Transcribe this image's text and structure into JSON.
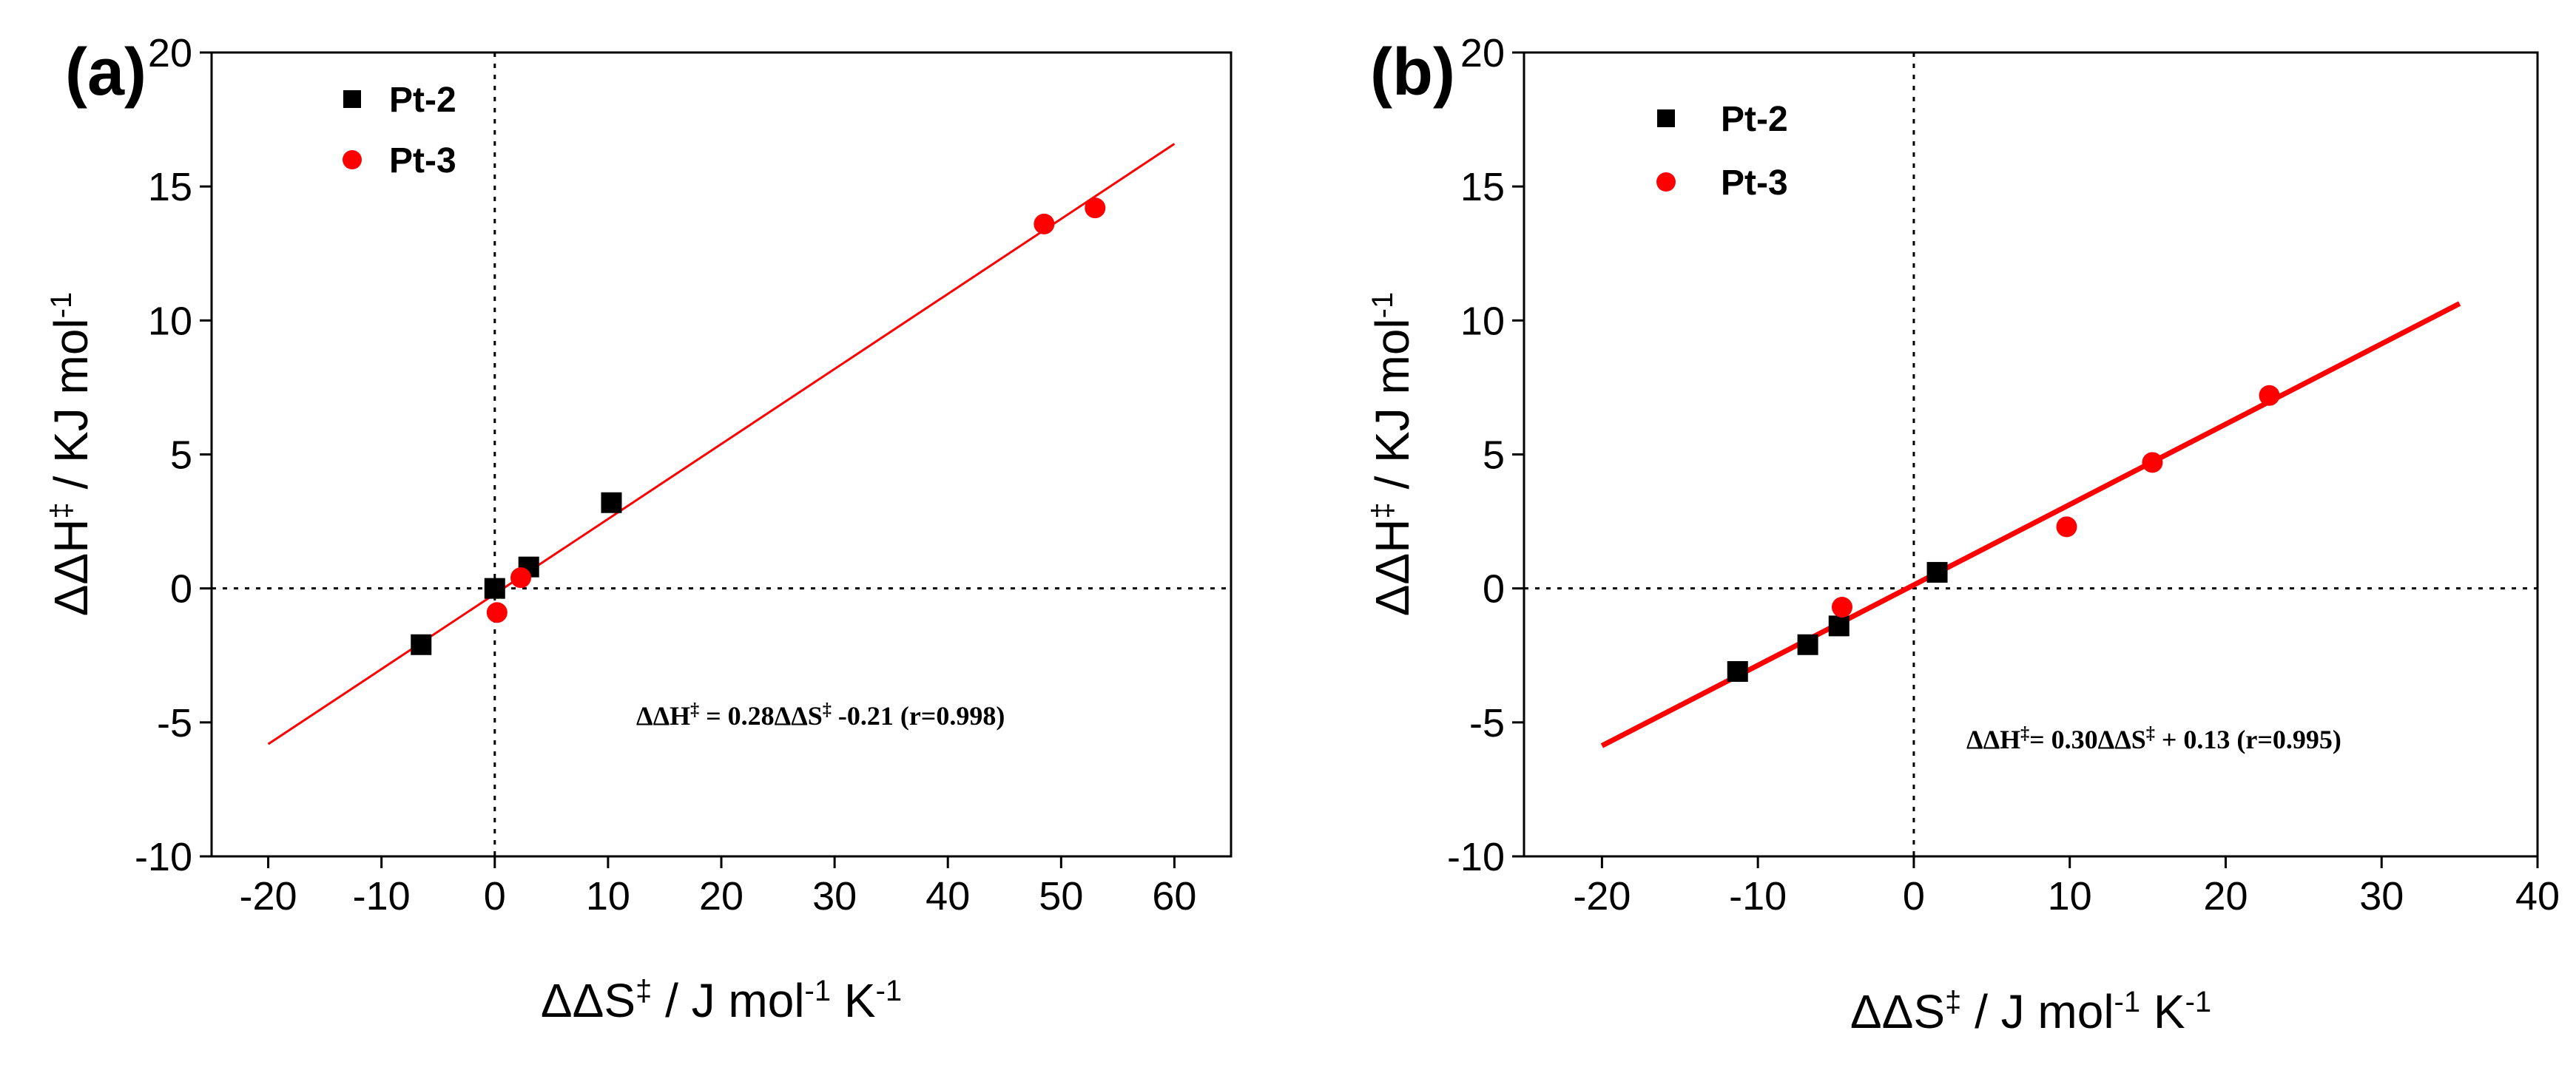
{
  "chart_data": [
    {
      "type": "scatter",
      "panel_label": "(a)",
      "xlabel": {
        "main": "ΔΔS",
        "sup": "‡",
        "unit_a": " / J mol",
        "exp1": "-1",
        "unit_b": " K",
        "exp2": "-1"
      },
      "ylabel": {
        "main": "ΔΔH",
        "sup": "‡",
        "unit": " / KJ mol",
        "exp": "-1"
      },
      "xlim": [
        -25,
        65
      ],
      "ylim": [
        -10,
        20
      ],
      "xticks": [
        -20,
        -10,
        0,
        10,
        20,
        30,
        40,
        50,
        60
      ],
      "yticks": [
        -10,
        -5,
        0,
        5,
        10,
        15,
        20
      ],
      "legend_position": "top-left",
      "series": [
        {
          "name": "Pt-2",
          "marker": "square",
          "color": "#000000",
          "points": [
            [
              -6.5,
              -2.1
            ],
            [
              0,
              0
            ],
            [
              3,
              0.8
            ],
            [
              10.3,
              3.2
            ]
          ]
        },
        {
          "name": "Pt-3",
          "marker": "circle",
          "color": "#ff0000",
          "points": [
            [
              0.2,
              -0.9
            ],
            [
              2.3,
              0.4
            ],
            [
              48.5,
              13.6
            ],
            [
              53,
              14.2
            ]
          ]
        }
      ],
      "fit": {
        "slope": 0.28,
        "intercept": -0.21,
        "x_range": [
          -20,
          60
        ],
        "color": "#ff0000",
        "weight": "thin"
      },
      "annotation": {
        "lhs": "ΔΔH",
        "sup1": "‡",
        "mid": " = 0.28ΔΔS",
        "sup2": "‡",
        "rhs": " -0.21 (r=0.998)"
      }
    },
    {
      "type": "scatter",
      "panel_label": "(b)",
      "xlabel": {
        "main": "ΔΔS",
        "sup": "‡",
        "unit_a": " / J mol",
        "exp1": "-1",
        "unit_b": " K",
        "exp2": "-1"
      },
      "ylabel": {
        "main": "ΔΔH",
        "sup": "‡",
        "unit": " / KJ mol",
        "exp": "-1"
      },
      "xlim": [
        -25,
        40
      ],
      "ylim": [
        -10,
        20
      ],
      "xticks": [
        -20,
        -10,
        0,
        10,
        20,
        30,
        40
      ],
      "yticks": [
        -10,
        -5,
        0,
        5,
        10,
        15,
        20
      ],
      "legend_position": "top-left",
      "series": [
        {
          "name": "Pt-2",
          "marker": "square",
          "color": "#000000",
          "points": [
            [
              -11.3,
              -3.1
            ],
            [
              -6.8,
              -2.1
            ],
            [
              -4.8,
              -1.4
            ],
            [
              1.5,
              0.6
            ]
          ]
        },
        {
          "name": "Pt-3",
          "marker": "circle",
          "color": "#ff0000",
          "points": [
            [
              -4.6,
              -0.7
            ],
            [
              9.8,
              2.3
            ],
            [
              15.3,
              4.7
            ],
            [
              22.8,
              7.2
            ]
          ]
        }
      ],
      "fit": {
        "slope": 0.3,
        "intercept": 0.13,
        "x_range": [
          -20,
          35
        ],
        "color": "#ff0000",
        "weight": "thick"
      },
      "annotation": {
        "lhs": "ΔΔH",
        "sup1": "‡",
        "mid": "= 0.30ΔΔS",
        "sup2": "‡",
        "rhs": " + 0.13 (r=0.995)"
      }
    }
  ]
}
